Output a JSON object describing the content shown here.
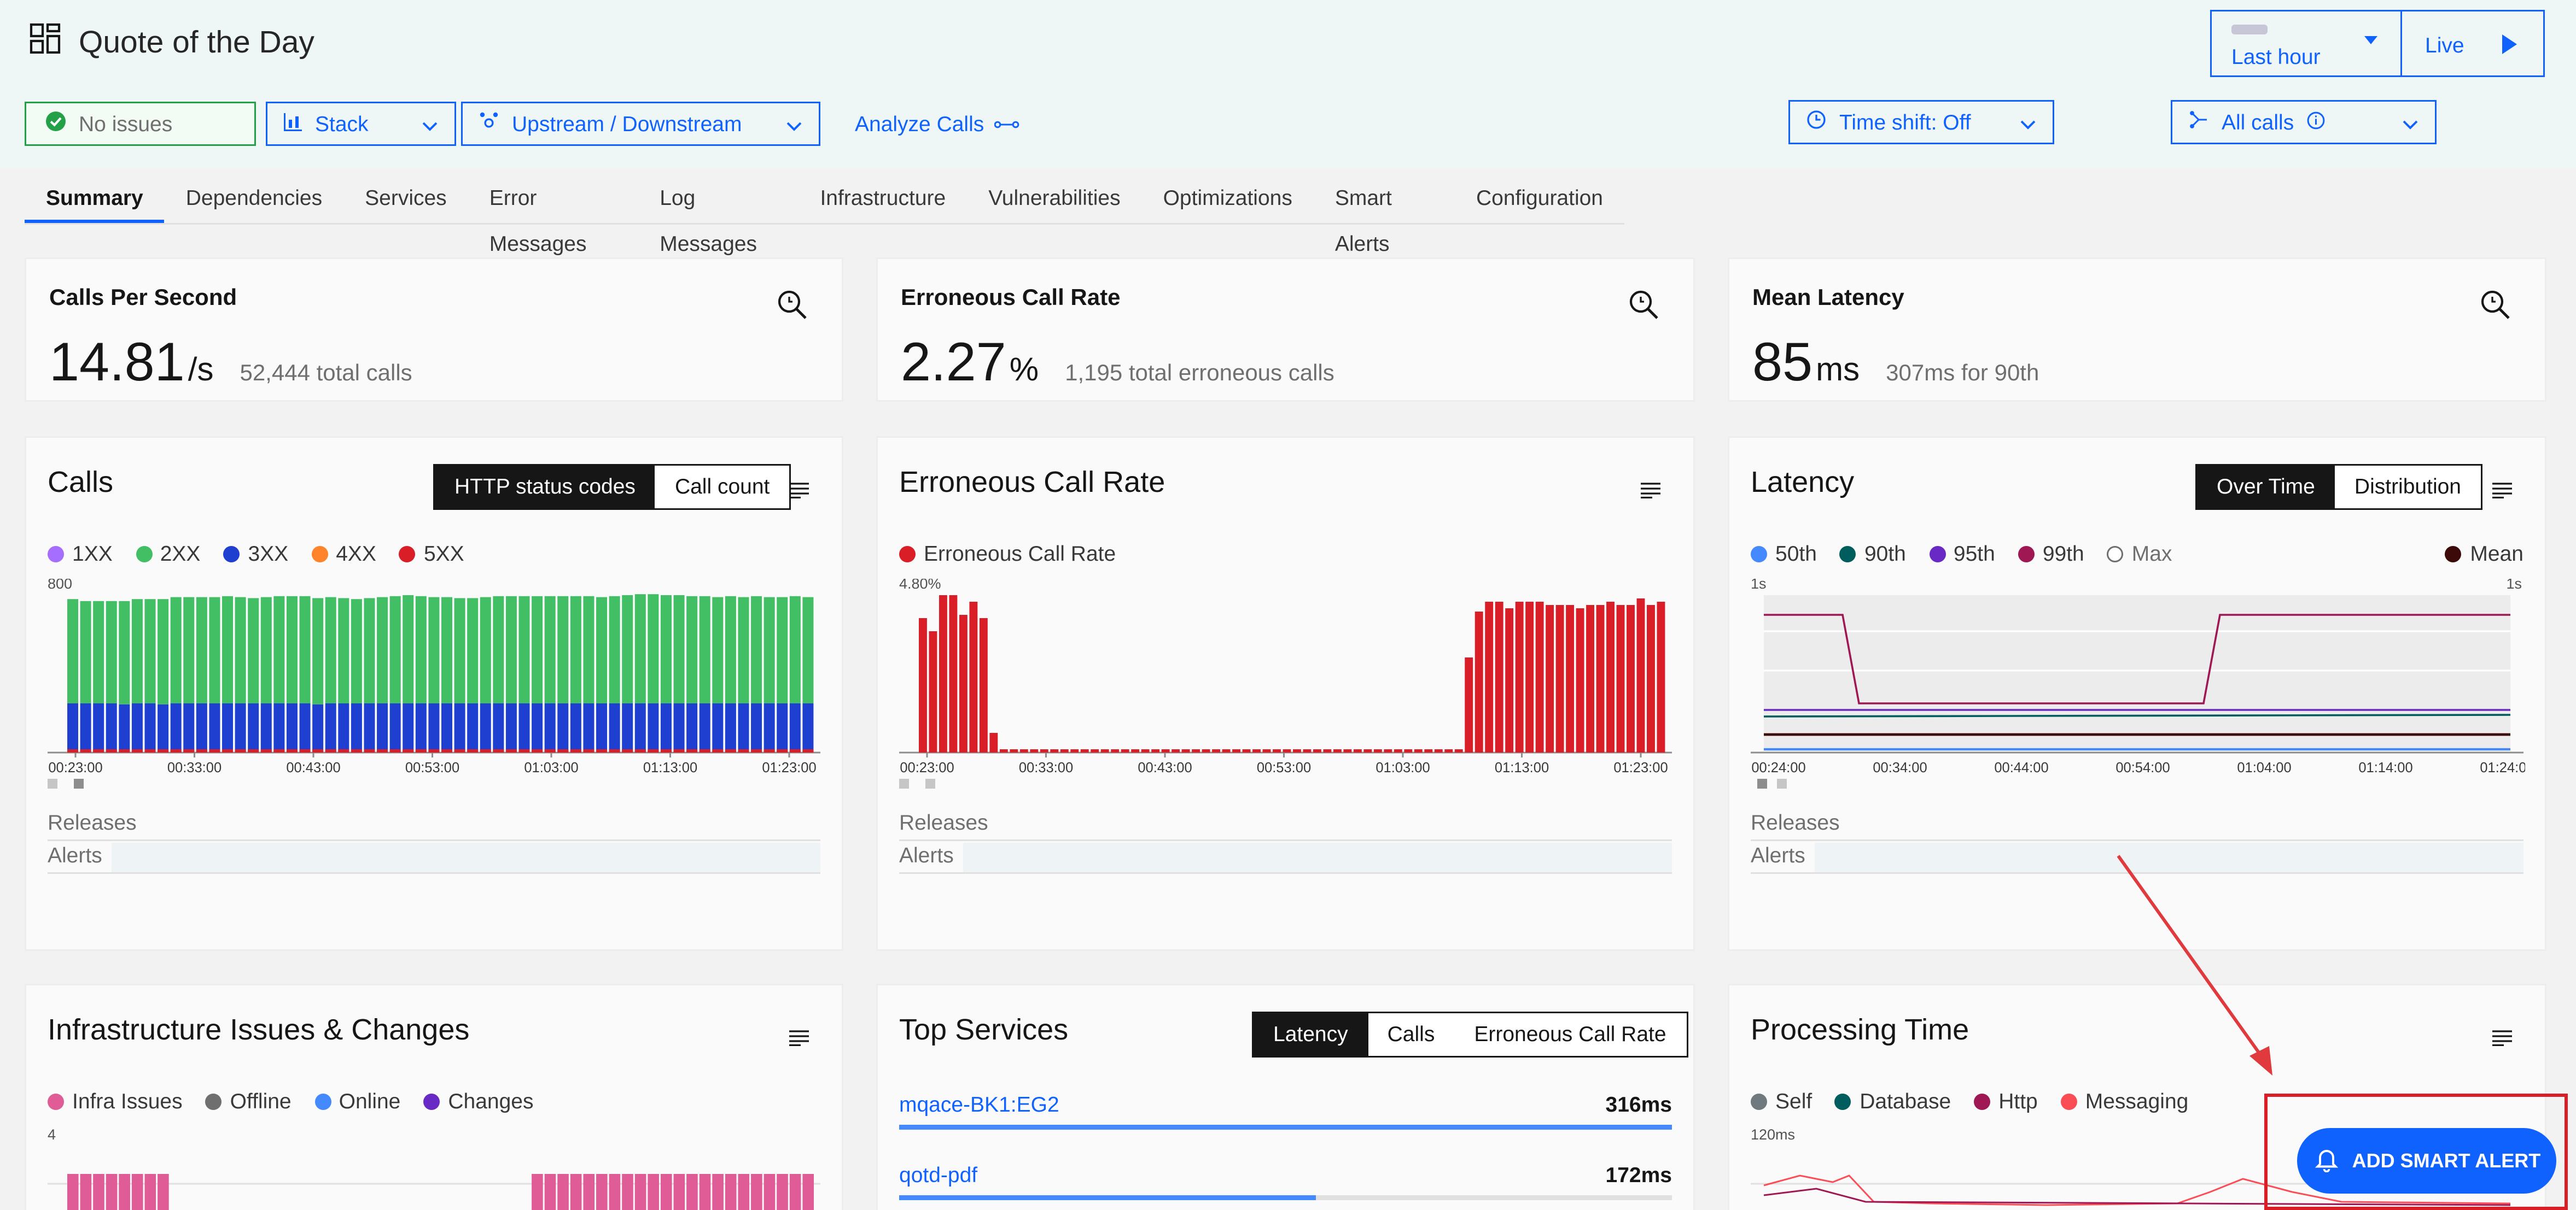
{
  "header": {
    "title": "Quote of the Day",
    "status": "No issues",
    "stack_label": "Stack",
    "upstream_label": "Upstream / Downstream",
    "analyze_label": "Analyze Calls",
    "time_shift_label": "Time shift: Off",
    "all_calls_label": "All calls",
    "time_range_label": "Last hour",
    "live_label": "Live"
  },
  "tabs": [
    "Summary",
    "Dependencies",
    "Services",
    "Error Messages",
    "Log Messages",
    "Infrastructure",
    "Vulnerabilities",
    "Optimizations",
    "Smart Alerts",
    "Configuration"
  ],
  "kpis": {
    "calls": {
      "title": "Calls Per Second",
      "value": "14.81",
      "unit": "/s",
      "sub": "52,444 total calls"
    },
    "error": {
      "title": "Erroneous Call Rate",
      "value": "2.27",
      "unit": "%",
      "sub": "1,195 total erroneous calls"
    },
    "latency": {
      "title": "Mean Latency",
      "value": "85",
      "unit": "ms",
      "sub": "307ms for 90th"
    }
  },
  "calls_panel": {
    "title": "Calls",
    "toggle": [
      "HTTP status codes",
      "Call count"
    ],
    "legend": [
      {
        "label": "1XX",
        "color": "#a56eff"
      },
      {
        "label": "2XX",
        "color": "#42be65"
      },
      {
        "label": "3XX",
        "color": "#1f3fd1"
      },
      {
        "label": "4XX",
        "color": "#ff832b"
      },
      {
        "label": "5XX",
        "color": "#da1e28"
      }
    ],
    "y_top": "800",
    "ticks": [
      "00:23:00",
      "00:33:00",
      "00:43:00",
      "00:53:00",
      "01:03:00",
      "01:13:00",
      "01:23:00"
    ]
  },
  "error_panel": {
    "title": "Erroneous Call Rate",
    "legend": [
      {
        "label": "Erroneous Call Rate",
        "color": "#da1e28"
      }
    ],
    "y_top": "4.80%",
    "ticks": [
      "00:23:00",
      "00:33:00",
      "00:43:00",
      "00:53:00",
      "01:03:00",
      "01:13:00",
      "01:23:00"
    ]
  },
  "latency_panel": {
    "title": "Latency",
    "toggle": [
      "Over Time",
      "Distribution"
    ],
    "legend": [
      {
        "label": "50th",
        "color": "#4589ff"
      },
      {
        "label": "90th",
        "color": "#005d5d"
      },
      {
        "label": "95th",
        "color": "#6929c4"
      },
      {
        "label": "99th",
        "color": "#9f1853"
      },
      {
        "label": "Max",
        "color": "#ffffff"
      }
    ],
    "mean_label": "Mean",
    "y_top_left": "1s",
    "y_top_right": "1s",
    "ticks": [
      "00:24:00",
      "00:34:00",
      "00:44:00",
      "00:54:00",
      "01:04:00",
      "01:14:00",
      "01:24:00"
    ]
  },
  "common": {
    "releases": "Releases",
    "alerts": "Alerts"
  },
  "infra_panel": {
    "title": "Infrastructure Issues & Changes",
    "legend": [
      {
        "label": "Infra Issues",
        "color": "#e05c96"
      },
      {
        "label": "Offline",
        "color": "#6f6f6f"
      },
      {
        "label": "Online",
        "color": "#4589ff"
      },
      {
        "label": "Changes",
        "color": "#6929c4"
      }
    ],
    "y_top": "4"
  },
  "top_services": {
    "title": "Top Services",
    "toggle": [
      "Latency",
      "Calls",
      "Erroneous Call Rate"
    ],
    "rows": [
      {
        "name": "mqace-BK1:EG2",
        "value": "316ms",
        "fill": 1.0
      },
      {
        "name": "qotd-pdf",
        "value": "172ms",
        "fill": 0.54
      }
    ]
  },
  "processing": {
    "title": "Processing Time",
    "legend": [
      {
        "label": "Self",
        "color": "#6f7a80"
      },
      {
        "label": "Database",
        "color": "#005d5d"
      },
      {
        "label": "Http",
        "color": "#9f1853"
      },
      {
        "label": "Messaging",
        "color": "#fa4d56"
      }
    ],
    "y_top": "120ms"
  },
  "smart_alert_label": "ADD SMART ALERT",
  "chart_data": [
    {
      "type": "bar",
      "title": "Calls",
      "series": [
        {
          "name": "2XX",
          "values": [
            530,
            520,
            520,
            520,
            525,
            530,
            530,
            535,
            540,
            540,
            540,
            540,
            545,
            540,
            535,
            540,
            545,
            545,
            545,
            540,
            540,
            535,
            530,
            535,
            540,
            545,
            550,
            545,
            540,
            540,
            535,
            535,
            540,
            545,
            545,
            545,
            545,
            545,
            545,
            545,
            545,
            540,
            545,
            550,
            555,
            555,
            550,
            550,
            545,
            545,
            540,
            545,
            540,
            545,
            540,
            540,
            545,
            540
          ]
        },
        {
          "name": "3XX",
          "values": [
            250,
            250,
            250,
            250,
            245,
            250,
            250,
            245,
            250,
            250,
            250,
            250,
            250,
            250,
            250,
            250,
            250,
            250,
            250,
            245,
            250,
            250,
            250,
            250,
            250,
            250,
            250,
            250,
            250,
            250,
            250,
            250,
            250,
            250,
            250,
            250,
            250,
            250,
            250,
            250,
            250,
            250,
            250,
            250,
            250,
            250,
            250,
            250,
            250,
            250,
            250,
            250,
            250,
            250,
            250,
            250,
            250,
            250
          ]
        }
      ],
      "ylim": [
        0,
        800
      ]
    },
    {
      "type": "bar",
      "title": "Erroneous Call Rate",
      "series": [
        {
          "name": "Erroneous Call Rate",
          "values": [
            4.1,
            3.7,
            4.8,
            4.8,
            4.2,
            4.6,
            4.1,
            0.6,
            0.1,
            0.1,
            0.1,
            0.1,
            0.1,
            0.1,
            0.1,
            0.1,
            0.1,
            0.1,
            0.1,
            0.1,
            0.1,
            0.1,
            0.1,
            0.1,
            0.1,
            0.1,
            0.1,
            0.1,
            0.1,
            0.1,
            0.1,
            0.1,
            0.1,
            0.1,
            0.1,
            0.1,
            0.1,
            0.1,
            0.1,
            0.1,
            0.1,
            0.1,
            0.1,
            0.1,
            0.1,
            0.1,
            0.1,
            0.1,
            0.1,
            0.1,
            0.1,
            0.1,
            0.1,
            0.1,
            2.9,
            4.3,
            4.6,
            4.6,
            4.4,
            4.6,
            4.6,
            4.6,
            4.5,
            4.5,
            4.5,
            4.4,
            4.5,
            4.5,
            4.6,
            4.5,
            4.5,
            4.7,
            4.5,
            4.6
          ]
        }
      ],
      "ylim": [
        0,
        4.8
      ]
    }
  ]
}
